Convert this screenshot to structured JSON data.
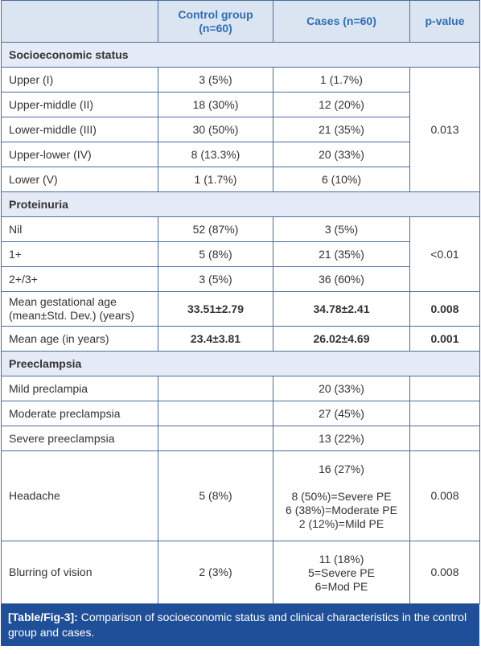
{
  "table": {
    "columns": [
      "Control group (n=60)",
      "Cases (n=60)",
      "p-value"
    ],
    "groups": [
      {
        "title": "Socioeconomic status",
        "p_value": "0.013",
        "rows": [
          {
            "label": "Upper (I)",
            "control": "3 (5%)",
            "cases": "1 (1.7%)"
          },
          {
            "label": "Upper-middle (II)",
            "control": "18 (30%)",
            "cases": "12 (20%)"
          },
          {
            "label": "Lower-middle (III)",
            "control": "30 (50%)",
            "cases": "21 (35%)"
          },
          {
            "label": "Upper-lower (IV)",
            "control": "8 (13.3%)",
            "cases": "20 (33%)"
          },
          {
            "label": "Lower (V)",
            "control": "1 (1.7%)",
            "cases": "6 (10%)"
          }
        ]
      },
      {
        "title": "Proteinuria",
        "p_value": "<0.01",
        "rows": [
          {
            "label": "Nil",
            "control": "52 (87%)",
            "cases": "3 (5%)"
          },
          {
            "label": "1+",
            "control": "5 (8%)",
            "cases": "21 (35%)"
          },
          {
            "label": "2+/3+",
            "control": "3 (5%)",
            "cases": "36 (60%)"
          }
        ]
      },
      {
        "rows": [
          {
            "label": "Mean gestational age (mean±Std. Dev.) (years)",
            "control": "33.51±2.79",
            "cases": "34.78±2.41",
            "p_value": "0.008",
            "bold": true
          }
        ]
      },
      {
        "rows": [
          {
            "label": "Mean age (in years)",
            "control": "23.4±3.81",
            "cases": "26.02±4.69",
            "p_value": "0.001",
            "bold": true
          }
        ]
      },
      {
        "title": "Preeclampsia",
        "rows": [
          {
            "label": "Mild preclampia",
            "cases": "20 (33%)"
          },
          {
            "label": "Moderate preclampsia",
            "cases": "27 (45%)"
          },
          {
            "label": "Severe preeclampsia",
            "cases": "13 (22%)"
          },
          {
            "label": "Headache",
            "control": "5 (8%)",
            "cases": [
              [
                "16 (27%)"
              ],
              [
                "8 (50%)=Severe PE",
                "6 (38%)=Moderate PE",
                "2 (12%)=Mild PE"
              ]
            ],
            "p_value": "0.008"
          },
          {
            "label": "Blurring of vision",
            "control": "2 (3%)",
            "cases": [
              [
                "11 (18%)",
                "5=Severe PE",
                "6=Mod PE"
              ]
            ],
            "p_value": "0.008"
          }
        ]
      }
    ],
    "caption": {
      "label": "[Table/Fig-3]:",
      "text": "Comparison of socioeconomic status and clinical characteristics in the control group and cases."
    }
  }
}
